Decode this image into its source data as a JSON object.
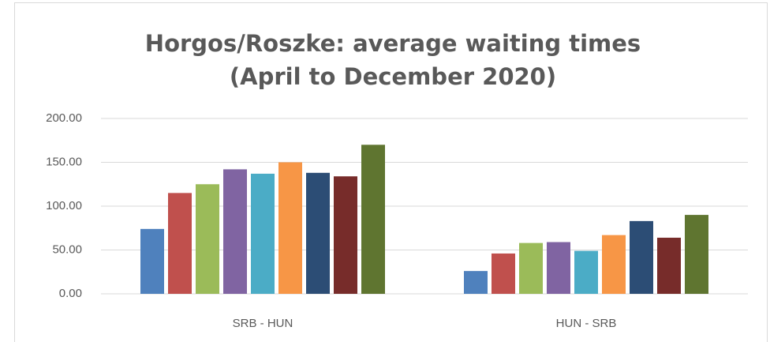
{
  "chart_data": {
    "type": "bar",
    "title": "Horgos/Roszke: average waiting times (April to December 2020)",
    "categories": [
      "SRB - HUN",
      "HUN - SRB"
    ],
    "series": [
      {
        "color": "#4f81bd",
        "values": [
          74,
          26
        ]
      },
      {
        "color": "#c0504d",
        "values": [
          115,
          46
        ]
      },
      {
        "color": "#9bbb59",
        "values": [
          125,
          58
        ]
      },
      {
        "color": "#8064a2",
        "values": [
          142,
          59
        ]
      },
      {
        "color": "#4bacc6",
        "values": [
          137,
          49
        ]
      },
      {
        "color": "#f79646",
        "values": [
          150,
          67
        ]
      },
      {
        "color": "#2c4d75",
        "values": [
          138,
          83
        ]
      },
      {
        "color": "#772c2a",
        "values": [
          134,
          64
        ]
      },
      {
        "color": "#5f7530",
        "values": [
          170,
          90
        ]
      }
    ],
    "ylim": [
      0,
      200
    ],
    "yticks": [
      {
        "value": 0,
        "label": "0.00"
      },
      {
        "value": 50,
        "label": "50.00"
      },
      {
        "value": 100,
        "label": "100.00"
      },
      {
        "value": 150,
        "label": "150.00"
      },
      {
        "value": 200,
        "label": "200.00"
      }
    ],
    "grid": true
  }
}
